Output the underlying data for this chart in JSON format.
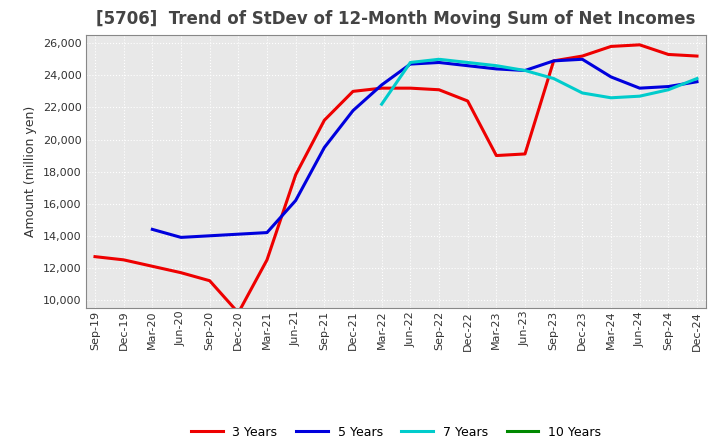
{
  "title": "[5706]  Trend of StDev of 12-Month Moving Sum of Net Incomes",
  "ylabel": "Amount (million yen)",
  "background_color": "#FFFFFF",
  "plot_background": "#E8E8E8",
  "grid_color": "#FFFFFF",
  "ylim": [
    9500,
    26500
  ],
  "yticks": [
    10000,
    12000,
    14000,
    16000,
    18000,
    20000,
    22000,
    24000,
    26000
  ],
  "x_labels": [
    "Sep-19",
    "Dec-19",
    "Mar-20",
    "Jun-20",
    "Sep-20",
    "Dec-20",
    "Mar-21",
    "Jun-21",
    "Sep-21",
    "Dec-21",
    "Mar-22",
    "Jun-22",
    "Sep-22",
    "Dec-22",
    "Mar-23",
    "Jun-23",
    "Sep-23",
    "Dec-23",
    "Mar-24",
    "Jun-24",
    "Sep-24",
    "Dec-24"
  ],
  "series": {
    "3 Years": {
      "color": "#EE0000",
      "linewidth": 2.2,
      "values": [
        12700,
        12500,
        12100,
        11700,
        11200,
        9200,
        12500,
        17800,
        21200,
        23000,
        23200,
        23200,
        23100,
        22400,
        19000,
        19100,
        24900,
        25200,
        25800,
        25900,
        25300,
        25200
      ]
    },
    "5 Years": {
      "color": "#0000DD",
      "linewidth": 2.2,
      "values": [
        null,
        null,
        14400,
        13900,
        14000,
        14100,
        14200,
        16200,
        19500,
        21800,
        23400,
        24700,
        24800,
        24600,
        24400,
        24300,
        24900,
        25000,
        23900,
        23200,
        23300,
        23600
      ]
    },
    "7 Years": {
      "color": "#00CCCC",
      "linewidth": 2.2,
      "values": [
        null,
        null,
        null,
        null,
        null,
        null,
        null,
        null,
        null,
        null,
        22200,
        24800,
        25000,
        24800,
        24600,
        24300,
        23800,
        22900,
        22600,
        22700,
        23100,
        23800
      ]
    },
    "10 Years": {
      "color": "#008800",
      "linewidth": 2.2,
      "values": [
        null,
        null,
        null,
        null,
        null,
        null,
        null,
        null,
        null,
        null,
        null,
        null,
        null,
        null,
        null,
        null,
        null,
        null,
        null,
        null,
        null,
        null
      ]
    }
  },
  "title_fontsize": 12,
  "title_color": "#444444",
  "axis_label_fontsize": 9,
  "tick_fontsize": 8,
  "legend_fontsize": 9
}
